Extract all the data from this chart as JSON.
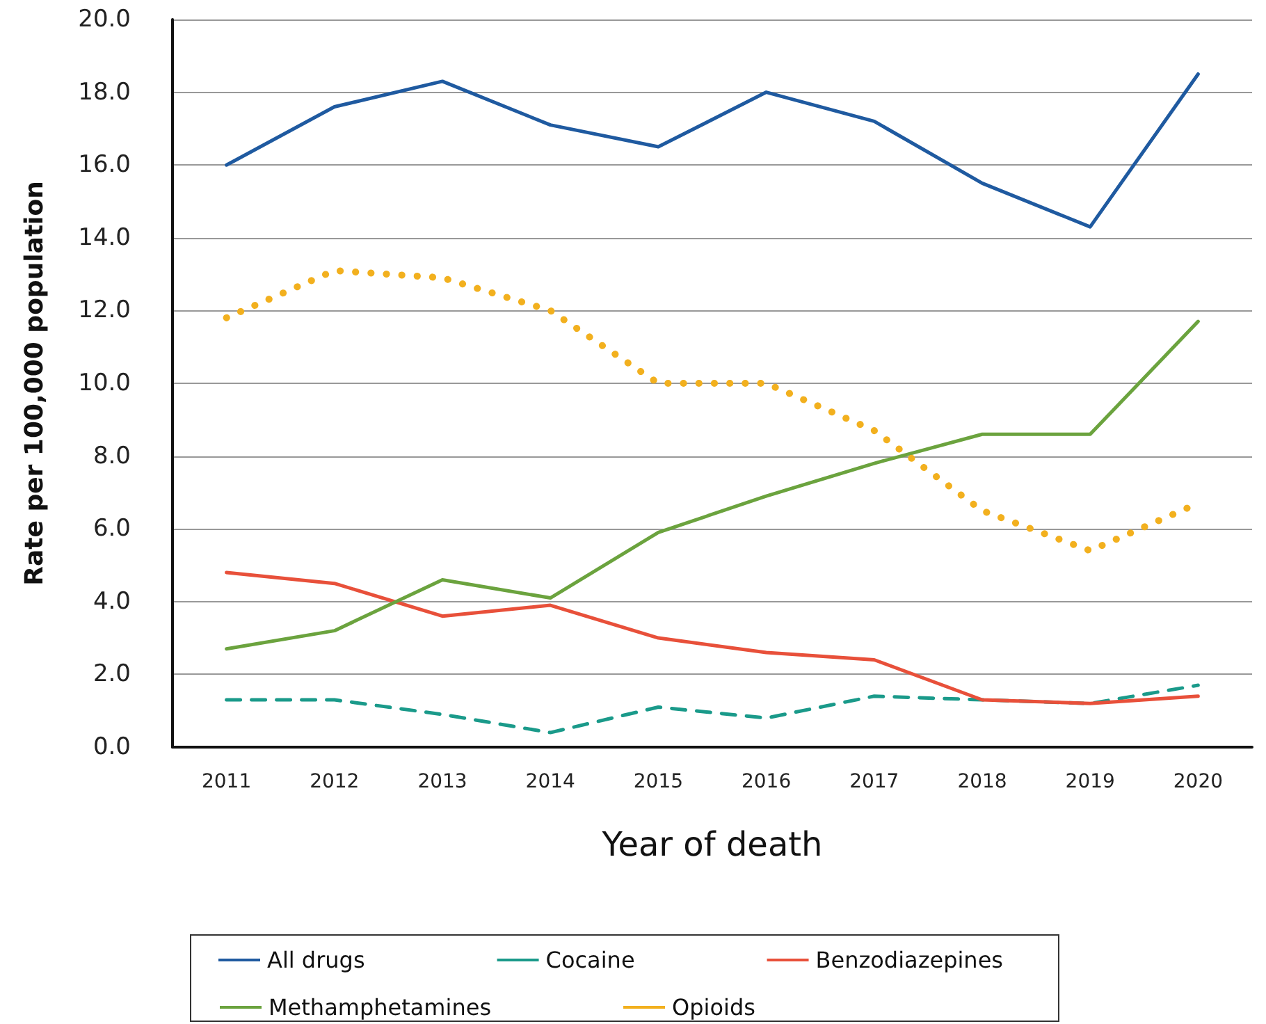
{
  "chart_data": {
    "type": "line",
    "xlabel": "Year of death",
    "ylabel": "Rate per 100,000 population",
    "categories": [
      "2011",
      "2012",
      "2013",
      "2014",
      "2015",
      "2016",
      "2017",
      "2018",
      "2019",
      "2020"
    ],
    "series": [
      {
        "name": "All drugs",
        "color": "#1f5aa0",
        "line_style": "solid",
        "values": [
          16.0,
          17.6,
          18.3,
          17.1,
          16.5,
          18.0,
          17.2,
          15.5,
          14.3,
          18.5
        ]
      },
      {
        "name": "Cocaine",
        "color": "#1a9a8a",
        "line_style": "dashed",
        "values": [
          1.3,
          1.3,
          0.9,
          0.4,
          1.1,
          0.8,
          1.4,
          1.3,
          1.2,
          1.7
        ]
      },
      {
        "name": "Benzodiazepines",
        "color": "#e8503a",
        "line_style": "solid",
        "values": [
          4.8,
          4.5,
          3.6,
          3.9,
          3.0,
          2.6,
          2.4,
          1.3,
          1.2,
          1.4
        ]
      },
      {
        "name": "Methamphetamines",
        "color": "#6ba33e",
        "line_style": "solid",
        "values": [
          2.7,
          3.2,
          4.6,
          4.1,
          5.9,
          6.9,
          7.8,
          8.6,
          8.6,
          11.7
        ]
      },
      {
        "name": "Opioids",
        "color": "#f2b01e",
        "line_style": "dotted",
        "values": [
          11.8,
          13.1,
          12.9,
          12.0,
          10.0,
          10.0,
          8.7,
          6.5,
          5.4,
          6.7
        ]
      }
    ],
    "ylim": [
      0,
      20
    ],
    "yticks": [
      {
        "value": 0,
        "label": "0.0"
      },
      {
        "value": 2,
        "label": "2.0"
      },
      {
        "value": 4,
        "label": "4.0"
      },
      {
        "value": 6,
        "label": "6.0"
      },
      {
        "value": 8,
        "label": "8.0"
      },
      {
        "value": 10,
        "label": "10.0"
      },
      {
        "value": 12,
        "label": "12.0"
      },
      {
        "value": 14,
        "label": "14.0"
      },
      {
        "value": 16,
        "label": "16.0"
      },
      {
        "value": 18,
        "label": "18.0"
      },
      {
        "value": 20,
        "label": "20.0"
      }
    ],
    "grid": "y",
    "legend": "bottom",
    "marker": "none"
  }
}
